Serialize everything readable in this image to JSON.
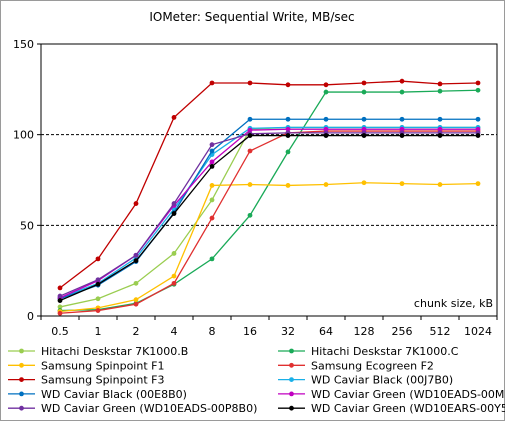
{
  "chart_data": {
    "type": "line",
    "title": "IOMeter: Sequential   Write, MB/sec",
    "xlabel": "chunk size, kB",
    "ylabel": "",
    "categories": [
      "0.5",
      "1",
      "2",
      "4",
      "8",
      "16",
      "32",
      "64",
      "128",
      "256",
      "512",
      "1024"
    ],
    "ylim": [
      0,
      150
    ],
    "yticks": [
      0,
      50,
      100,
      150
    ],
    "grid": "dashed at 50 and 100",
    "legend_position": "bottom",
    "series": [
      {
        "name": "Hitachi Deskstar 7K1000.B",
        "color": "#9acd50",
        "values": [
          5,
          9.5,
          18,
          34.5,
          64,
          103,
          104,
          104,
          104,
          104,
          104,
          104
        ]
      },
      {
        "name": "Hitachi Deskstar 7K1000.C",
        "color": "#1aaa58",
        "values": [
          3,
          3.5,
          7,
          17.5,
          31.5,
          55.5,
          90.5,
          123.5,
          123.5,
          123.5,
          124,
          124.5
        ]
      },
      {
        "name": "Samsung Spinpoint F1",
        "color": "#ffc000",
        "values": [
          2.5,
          4.5,
          9,
          22,
          72,
          72.5,
          72,
          72.5,
          73.5,
          73,
          72.5,
          73
        ]
      },
      {
        "name": "Samsung Ecogreen F2",
        "color": "#e03030",
        "values": [
          1.5,
          3,
          6.5,
          18,
          54,
          91,
          101,
          102,
          102,
          102,
          102,
          102
        ]
      },
      {
        "name": "Samsung Spinpoint F3",
        "color": "#c00000",
        "values": [
          15.5,
          31.5,
          62,
          109.5,
          128.5,
          128.5,
          127.5,
          127.5,
          128.5,
          129.5,
          128,
          128.5
        ]
      },
      {
        "name": "WD Caviar Black (00J7B0)",
        "color": "#1ab0e8",
        "values": [
          10,
          18,
          32,
          59,
          89,
          103.5,
          104,
          104,
          104,
          104,
          104,
          104
        ]
      },
      {
        "name": "WD Caviar Black (00E8B0)",
        "color": "#0070c0",
        "values": [
          9.5,
          17,
          30,
          57,
          91,
          108.5,
          108.5,
          108.5,
          108.5,
          108.5,
          108.5,
          108.5
        ]
      },
      {
        "name": "WD Caviar Green (WD10EADS-00M2B0)",
        "color": "#c000c0",
        "values": [
          10,
          19.5,
          33.5,
          61,
          85,
          102.5,
          103,
          103,
          103,
          103,
          103,
          103
        ]
      },
      {
        "name": "WD Caviar Green (WD10EADS-00P8B0)",
        "color": "#7030a0",
        "values": [
          11,
          20,
          33.5,
          62,
          94.5,
          100.5,
          101,
          101,
          101,
          101,
          101,
          101
        ]
      },
      {
        "name": "WD Caviar Green (WD10EARS-00Y5B1)",
        "color": "#000000",
        "values": [
          8.5,
          17.5,
          30.5,
          56.5,
          82.5,
          99.5,
          99.5,
          99.5,
          99.5,
          99.5,
          99.5,
          99.5
        ]
      }
    ]
  }
}
